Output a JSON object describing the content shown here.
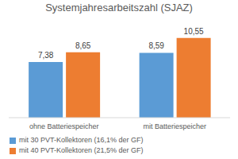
{
  "chart_data": {
    "type": "bar",
    "title": "Systemjahresarbeitszahl (SJAZ)",
    "categories": [
      "ohne Batteriespeicher",
      "mit Batteriespeicher"
    ],
    "series": [
      {
        "name": "mit 30 PVT-Kollektoren (16,1% der GF)",
        "color": "#5b9bd5",
        "values": [
          7.38,
          8.59
        ],
        "value_labels": [
          "7,38",
          "8,59"
        ]
      },
      {
        "name": "mit 40 PVT-Kollektoren (21,5% der GF)",
        "color": "#ed7d31",
        "values": [
          8.65,
          10.55
        ],
        "value_labels": [
          "8,65",
          "10,55"
        ]
      }
    ],
    "ylim": [
      0,
      12
    ],
    "yticks": [
      0,
      2,
      4,
      6,
      8,
      10,
      12
    ],
    "grid": true,
    "data_labels": true,
    "tick_labels": "x"
  }
}
